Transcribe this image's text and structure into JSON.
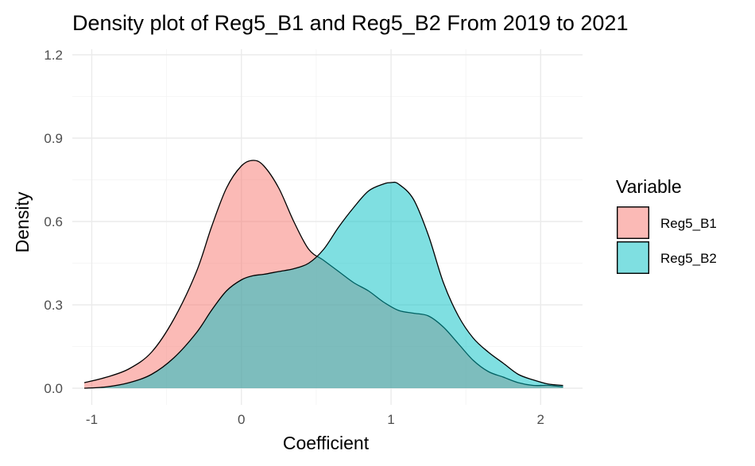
{
  "chart_data": {
    "type": "area",
    "title": "Density plot of Reg5_B1 and Reg5_B2 From 2019 to 2021",
    "xlabel": "Coefficient",
    "ylabel": "Density",
    "xlim": [
      -1.13,
      2.28
    ],
    "ylim": [
      -0.06,
      1.22
    ],
    "x_ticks": [
      -1,
      0,
      1,
      2
    ],
    "x_tick_labels": [
      "-1",
      "0",
      "1",
      "2"
    ],
    "y_ticks": [
      0.0,
      0.3,
      0.6,
      0.9,
      1.2
    ],
    "y_tick_labels": [
      "0.0",
      "0.3",
      "0.6",
      "0.9",
      "1.2"
    ],
    "grid": true,
    "legend": {
      "title": "Variable",
      "position": "right"
    },
    "series": [
      {
        "name": "Reg5_B1",
        "color": "#F8766D",
        "x": [
          -1.05,
          -0.9,
          -0.75,
          -0.6,
          -0.45,
          -0.3,
          -0.2,
          -0.1,
          0.0,
          0.08,
          0.15,
          0.25,
          0.35,
          0.45,
          0.55,
          0.65,
          0.75,
          0.85,
          0.95,
          1.05,
          1.15,
          1.25,
          1.35,
          1.45,
          1.55,
          1.65,
          1.75,
          1.85,
          1.95,
          2.05,
          2.15
        ],
        "y": [
          0.02,
          0.04,
          0.07,
          0.13,
          0.25,
          0.42,
          0.58,
          0.72,
          0.8,
          0.82,
          0.8,
          0.72,
          0.6,
          0.5,
          0.46,
          0.42,
          0.38,
          0.35,
          0.31,
          0.28,
          0.27,
          0.26,
          0.22,
          0.16,
          0.1,
          0.06,
          0.04,
          0.02,
          0.01,
          0.01,
          0.005
        ]
      },
      {
        "name": "Reg5_B2",
        "color": "#00BFC4",
        "x": [
          -1.05,
          -0.9,
          -0.75,
          -0.6,
          -0.45,
          -0.3,
          -0.2,
          -0.1,
          0.0,
          0.08,
          0.15,
          0.25,
          0.35,
          0.45,
          0.55,
          0.65,
          0.75,
          0.85,
          0.95,
          1.0,
          1.05,
          1.15,
          1.25,
          1.35,
          1.45,
          1.55,
          1.65,
          1.75,
          1.85,
          1.95,
          2.05,
          2.15
        ],
        "y": [
          0.0,
          0.005,
          0.02,
          0.05,
          0.11,
          0.2,
          0.28,
          0.35,
          0.39,
          0.405,
          0.41,
          0.42,
          0.43,
          0.45,
          0.5,
          0.58,
          0.65,
          0.71,
          0.735,
          0.74,
          0.735,
          0.68,
          0.55,
          0.38,
          0.26,
          0.18,
          0.13,
          0.09,
          0.05,
          0.03,
          0.015,
          0.01
        ]
      }
    ]
  }
}
